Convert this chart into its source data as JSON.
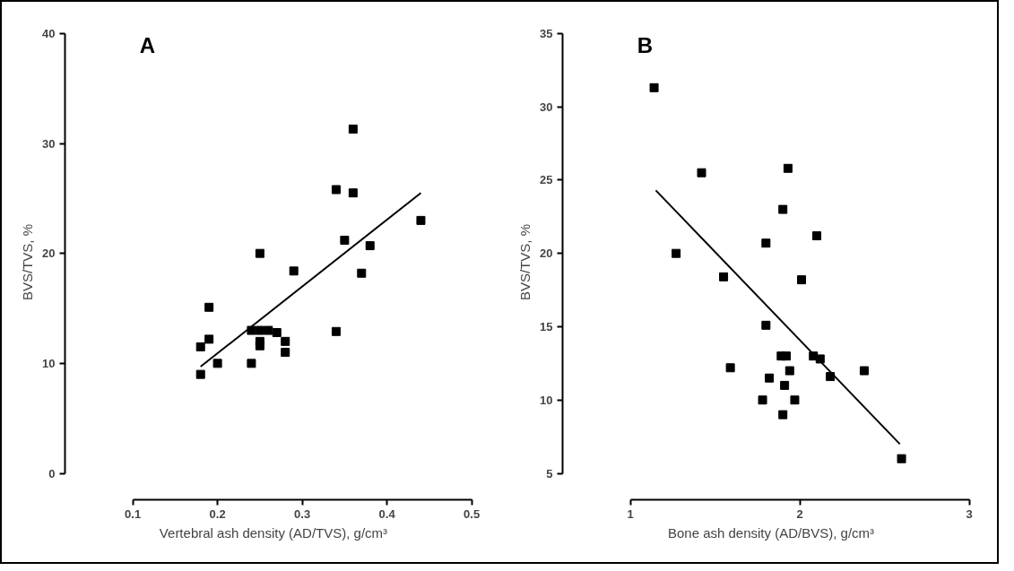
{
  "chart_data": [
    {
      "type": "scatter",
      "title": "A",
      "xlabel": "Vertebral ash density (AD/TVS), g/cm³",
      "ylabel": "BVS/TVS, %",
      "xlim": [
        0.1,
        0.5
      ],
      "xticks": [
        0.1,
        0.2,
        0.3,
        0.4,
        0.5
      ],
      "ylim": [
        0,
        40
      ],
      "yticks": [
        0,
        10,
        20,
        30,
        40
      ],
      "grid": false,
      "series": [
        {
          "marker": "square",
          "color": "#000000",
          "x": [
            0.18,
            0.18,
            0.19,
            0.19,
            0.2,
            0.24,
            0.24,
            0.25,
            0.25,
            0.25,
            0.25,
            0.26,
            0.27,
            0.28,
            0.28,
            0.29,
            0.34,
            0.34,
            0.35,
            0.36,
            0.36,
            0.37,
            0.38,
            0.44
          ],
          "values": [
            9,
            11.5,
            15.1,
            12.2,
            10,
            13,
            10,
            13,
            12,
            11.6,
            20,
            13,
            12.8,
            12,
            11,
            18.4,
            25.8,
            12.9,
            21.2,
            31.3,
            25.5,
            18.2,
            20.7,
            23
          ]
        },
        {
          "type": "line",
          "color": "#000000",
          "line_style": "solid",
          "x": [
            0.18,
            0.44
          ],
          "values": [
            9.7,
            25.5
          ]
        }
      ]
    },
    {
      "type": "scatter",
      "title": "B",
      "xlabel": "Bone ash density (AD/BVS), g/cm³",
      "ylabel": "BVS/TVS, %",
      "xlim": [
        1,
        3
      ],
      "xticks": [
        1,
        2,
        3
      ],
      "ylim": [
        5,
        35
      ],
      "yticks": [
        5,
        10,
        15,
        20,
        25,
        30,
        35
      ],
      "grid": false,
      "series": [
        {
          "marker": "square",
          "color": "#000000",
          "x": [
            1.14,
            1.27,
            1.42,
            1.55,
            1.59,
            1.78,
            1.8,
            1.8,
            1.82,
            1.89,
            1.9,
            1.9,
            1.91,
            1.92,
            1.93,
            1.94,
            1.97,
            2.01,
            2.08,
            2.1,
            2.12,
            2.18,
            2.38,
            2.6
          ],
          "values": [
            31.3,
            20,
            25.5,
            18.4,
            12.2,
            10,
            15.1,
            20.7,
            11.5,
            13,
            23,
            9,
            11,
            13,
            25.8,
            12,
            10,
            18.2,
            13,
            21.2,
            12.8,
            11.6,
            12,
            6
          ]
        },
        {
          "type": "line",
          "color": "#000000",
          "line_style": "solid",
          "x": [
            1.15,
            2.59
          ],
          "values": [
            24.3,
            7
          ]
        }
      ]
    }
  ]
}
